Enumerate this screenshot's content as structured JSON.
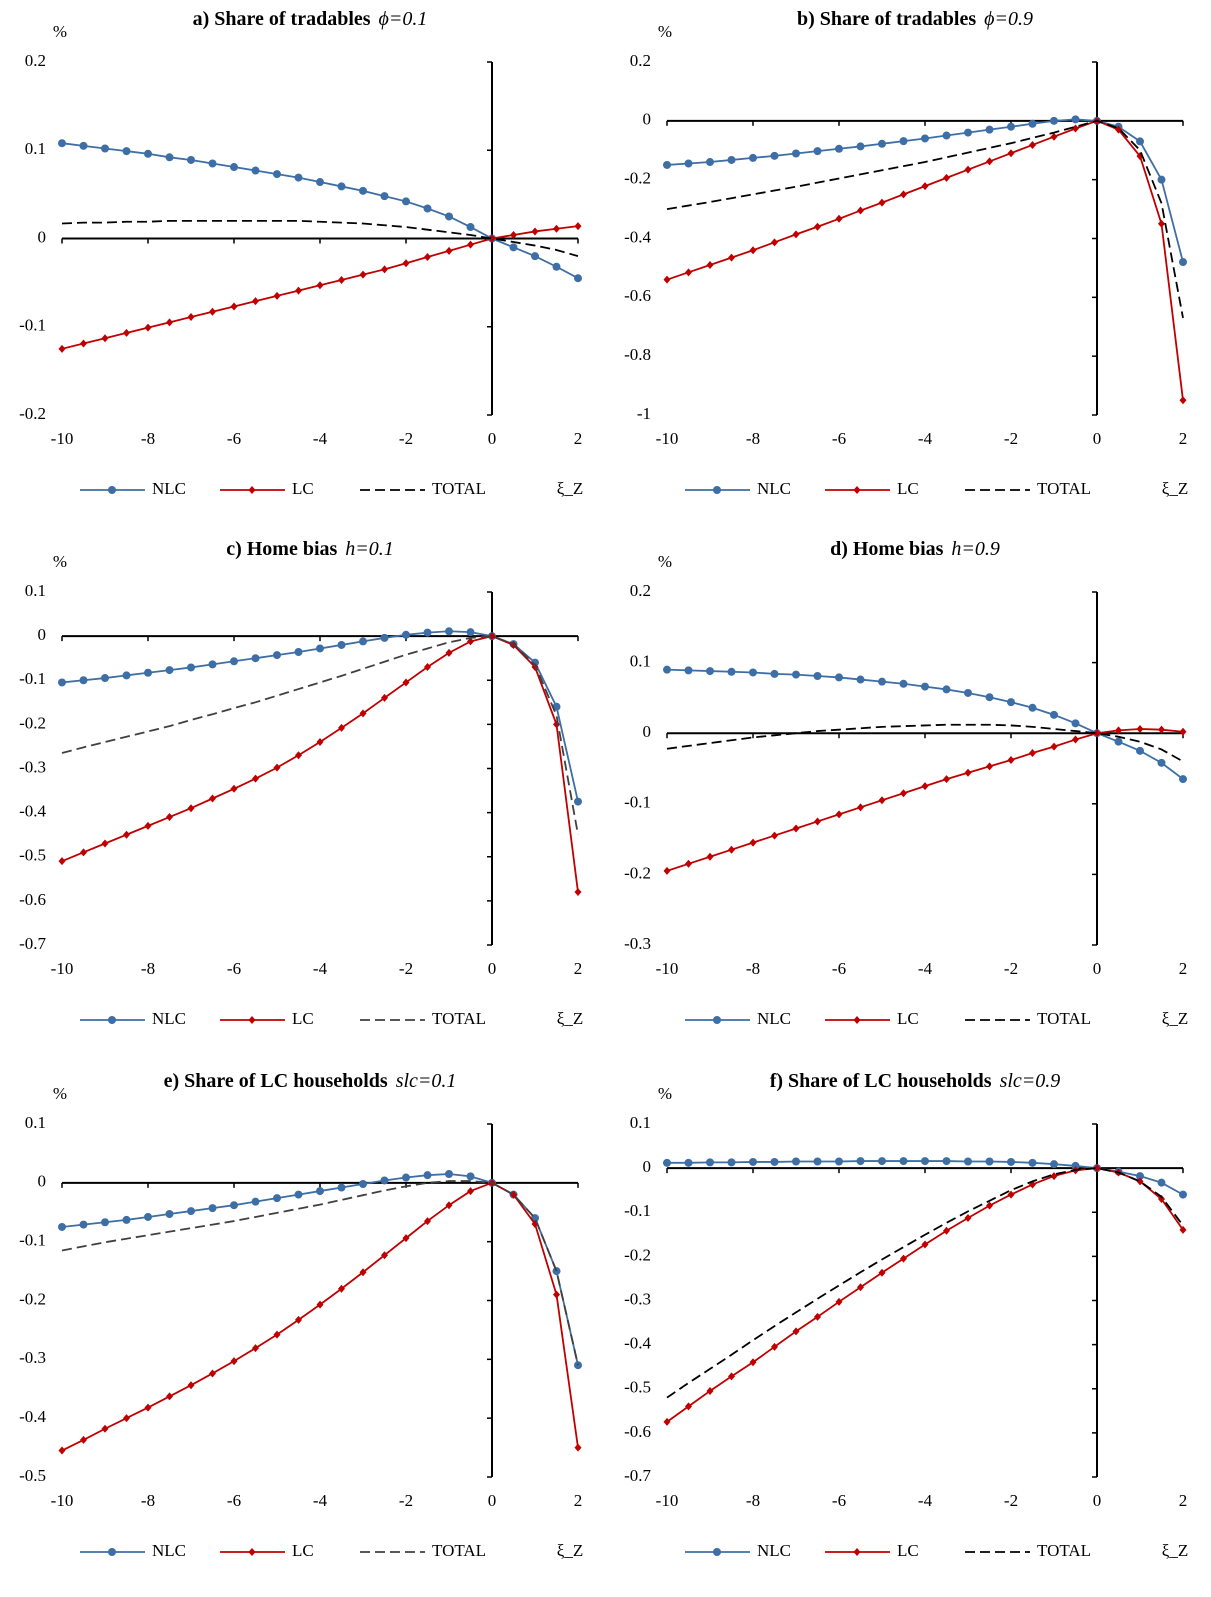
{
  "chart_data": [
    {
      "type": "line",
      "title": "a) Share of tradables",
      "subtitle": "ϕ=0.1",
      "y_label": "%",
      "x_label": "ξ_Z",
      "legend": "bottom",
      "xlim": [
        -10,
        2
      ],
      "xticks": [
        -10,
        -8,
        -6,
        -4,
        -2,
        0,
        2
      ],
      "ylim": [
        -0.2,
        0.2
      ],
      "yticks": [
        -0.2,
        -0.1,
        0,
        0.1,
        0.2
      ],
      "x": [
        -10,
        -9.5,
        -9,
        -8.5,
        -8,
        -7.5,
        -7,
        -6.5,
        -6,
        -5.5,
        -5,
        -4.5,
        -4,
        -3.5,
        -3,
        -2.5,
        -2,
        -1.5,
        -1,
        -0.5,
        0,
        0.5,
        1,
        1.5,
        2
      ],
      "series": [
        {
          "name": "NLC",
          "color": "#3d6ea5",
          "marker": "circle",
          "dashed": false,
          "values": [
            0.108,
            0.105,
            0.102,
            0.099,
            0.096,
            0.092,
            0.089,
            0.085,
            0.081,
            0.077,
            0.073,
            0.069,
            0.064,
            0.059,
            0.054,
            0.048,
            0.042,
            0.034,
            0.025,
            0.013,
            0,
            -0.01,
            -0.02,
            -0.032,
            -0.045
          ]
        },
        {
          "name": "LC",
          "color": "#c00000",
          "marker": "diamond",
          "dashed": false,
          "values": [
            -0.125,
            -0.119,
            -0.113,
            -0.107,
            -0.101,
            -0.095,
            -0.089,
            -0.083,
            -0.077,
            -0.071,
            -0.065,
            -0.059,
            -0.053,
            -0.047,
            -0.041,
            -0.035,
            -0.028,
            -0.021,
            -0.014,
            -0.007,
            0,
            0.004,
            0.008,
            0.011,
            0.014
          ]
        },
        {
          "name": "TOTAL",
          "color": "#000000",
          "marker": "none",
          "dashed": true,
          "values": [
            0.017,
            0.018,
            0.018,
            0.019,
            0.019,
            0.02,
            0.02,
            0.02,
            0.02,
            0.02,
            0.02,
            0.02,
            0.019,
            0.018,
            0.017,
            0.015,
            0.013,
            0.01,
            0.007,
            0.004,
            0,
            -0.004,
            -0.008,
            -0.013,
            -0.02
          ]
        }
      ]
    },
    {
      "type": "line",
      "title": "b) Share of tradables",
      "subtitle": "ϕ=0.9",
      "y_label": "%",
      "x_label": "ξ_Z",
      "legend": "bottom",
      "xlim": [
        -10,
        2
      ],
      "xticks": [
        -10,
        -8,
        -6,
        -4,
        -2,
        0,
        2
      ],
      "ylim": [
        -1,
        0.2
      ],
      "yticks": [
        -1,
        -0.8,
        -0.6,
        -0.4,
        -0.2,
        0,
        0.2
      ],
      "x": [
        -10,
        -9.5,
        -9,
        -8.5,
        -8,
        -7.5,
        -7,
        -6.5,
        -6,
        -5.5,
        -5,
        -4.5,
        -4,
        -3.5,
        -3,
        -2.5,
        -2,
        -1.5,
        -1,
        -0.5,
        0,
        0.5,
        1,
        1.5,
        2
      ],
      "series": [
        {
          "name": "NLC",
          "color": "#3d6ea5",
          "marker": "circle",
          "dashed": false,
          "values": [
            -0.15,
            -0.145,
            -0.14,
            -0.133,
            -0.126,
            -0.119,
            -0.111,
            -0.103,
            -0.095,
            -0.087,
            -0.078,
            -0.069,
            -0.06,
            -0.05,
            -0.04,
            -0.03,
            -0.02,
            -0.01,
            0,
            0.005,
            0,
            -0.02,
            -0.07,
            -0.2,
            -0.48
          ]
        },
        {
          "name": "LC",
          "color": "#c00000",
          "marker": "diamond",
          "dashed": false,
          "values": [
            -0.54,
            -0.515,
            -0.49,
            -0.465,
            -0.44,
            -0.413,
            -0.386,
            -0.36,
            -0.333,
            -0.305,
            -0.278,
            -0.25,
            -0.222,
            -0.194,
            -0.166,
            -0.138,
            -0.11,
            -0.082,
            -0.054,
            -0.026,
            0,
            -0.03,
            -0.12,
            -0.35,
            -0.95
          ]
        },
        {
          "name": "TOTAL",
          "color": "#000000",
          "marker": "none",
          "dashed": true,
          "values": [
            -0.3,
            -0.288,
            -0.276,
            -0.263,
            -0.25,
            -0.237,
            -0.224,
            -0.21,
            -0.196,
            -0.182,
            -0.168,
            -0.154,
            -0.14,
            -0.124,
            -0.108,
            -0.092,
            -0.076,
            -0.058,
            -0.04,
            -0.02,
            0,
            -0.025,
            -0.1,
            -0.28,
            -0.67
          ]
        }
      ]
    },
    {
      "type": "line",
      "title": "c) Home bias",
      "subtitle": "h=0.1",
      "y_label": "%",
      "x_label": "ξ_Z",
      "legend": "bottom",
      "xlim": [
        -10,
        2
      ],
      "xticks": [
        -10,
        -8,
        -6,
        -4,
        -2,
        0,
        2
      ],
      "ylim": [
        -0.7,
        0.1
      ],
      "yticks": [
        -0.7,
        -0.6,
        -0.5,
        -0.4,
        -0.3,
        -0.2,
        -0.1,
        0,
        0.1
      ],
      "x": [
        -10,
        -9.5,
        -9,
        -8.5,
        -8,
        -7.5,
        -7,
        -6.5,
        -6,
        -5.5,
        -5,
        -4.5,
        -4,
        -3.5,
        -3,
        -2.5,
        -2,
        -1.5,
        -1,
        -0.5,
        0,
        0.5,
        1,
        1.5,
        2
      ],
      "series": [
        {
          "name": "NLC",
          "color": "#3d6ea5",
          "marker": "circle",
          "dashed": false,
          "values": [
            -0.105,
            -0.1,
            -0.095,
            -0.089,
            -0.083,
            -0.077,
            -0.071,
            -0.064,
            -0.057,
            -0.05,
            -0.043,
            -0.036,
            -0.028,
            -0.02,
            -0.012,
            -0.004,
            0.003,
            0.008,
            0.011,
            0.009,
            0,
            -0.018,
            -0.06,
            -0.16,
            -0.375
          ]
        },
        {
          "name": "LC",
          "color": "#c00000",
          "marker": "diamond",
          "dashed": false,
          "values": [
            -0.51,
            -0.49,
            -0.47,
            -0.45,
            -0.43,
            -0.41,
            -0.39,
            -0.368,
            -0.346,
            -0.323,
            -0.298,
            -0.27,
            -0.24,
            -0.208,
            -0.175,
            -0.14,
            -0.105,
            -0.07,
            -0.038,
            -0.012,
            0,
            -0.02,
            -0.07,
            -0.2,
            -0.58
          ]
        },
        {
          "name": "TOTAL",
          "color": "#404040",
          "marker": "none",
          "dashed": true,
          "values": [
            -0.265,
            -0.252,
            -0.24,
            -0.228,
            -0.216,
            -0.204,
            -0.19,
            -0.177,
            -0.163,
            -0.15,
            -0.135,
            -0.12,
            -0.105,
            -0.09,
            -0.074,
            -0.058,
            -0.042,
            -0.028,
            -0.014,
            -0.004,
            0,
            -0.018,
            -0.065,
            -0.18,
            -0.45
          ]
        }
      ]
    },
    {
      "type": "line",
      "title": "d) Home bias",
      "subtitle": "h=0.9",
      "y_label": "%",
      "x_label": "ξ_Z",
      "legend": "bottom",
      "xlim": [
        -10,
        2
      ],
      "xticks": [
        -10,
        -8,
        -6,
        -4,
        -2,
        0,
        2
      ],
      "ylim": [
        -0.3,
        0.2
      ],
      "yticks": [
        -0.3,
        -0.2,
        -0.1,
        0,
        0.1,
        0.2
      ],
      "x": [
        -10,
        -9.5,
        -9,
        -8.5,
        -8,
        -7.5,
        -7,
        -6.5,
        -6,
        -5.5,
        -5,
        -4.5,
        -4,
        -3.5,
        -3,
        -2.5,
        -2,
        -1.5,
        -1,
        -0.5,
        0,
        0.5,
        1,
        1.5,
        2
      ],
      "series": [
        {
          "name": "NLC",
          "color": "#3d6ea5",
          "marker": "circle",
          "dashed": false,
          "values": [
            0.09,
            0.089,
            0.088,
            0.087,
            0.086,
            0.084,
            0.083,
            0.081,
            0.079,
            0.076,
            0.073,
            0.07,
            0.066,
            0.062,
            0.057,
            0.051,
            0.044,
            0.036,
            0.026,
            0.014,
            0,
            -0.012,
            -0.025,
            -0.042,
            -0.065
          ]
        },
        {
          "name": "LC",
          "color": "#c00000",
          "marker": "diamond",
          "dashed": false,
          "values": [
            -0.195,
            -0.185,
            -0.175,
            -0.165,
            -0.155,
            -0.145,
            -0.135,
            -0.125,
            -0.115,
            -0.105,
            -0.095,
            -0.085,
            -0.075,
            -0.065,
            -0.056,
            -0.047,
            -0.038,
            -0.028,
            -0.019,
            -0.009,
            0,
            0.004,
            0.006,
            0.005,
            0.002
          ]
        },
        {
          "name": "TOTAL",
          "color": "#000000",
          "marker": "none",
          "dashed": true,
          "values": [
            -0.022,
            -0.018,
            -0.014,
            -0.01,
            -0.006,
            -0.003,
            0,
            0.003,
            0.005,
            0.007,
            0.009,
            0.01,
            0.011,
            0.012,
            0.012,
            0.012,
            0.011,
            0.009,
            0.006,
            0.003,
            0,
            -0.005,
            -0.012,
            -0.023,
            -0.04
          ]
        }
      ]
    },
    {
      "type": "line",
      "title": "e) Share of LC households",
      "subtitle": "slc=0.1",
      "y_label": "%",
      "x_label": "ξ_Z",
      "legend": "bottom",
      "xlim": [
        -10,
        2
      ],
      "xticks": [
        -10,
        -8,
        -6,
        -4,
        -2,
        0,
        2
      ],
      "ylim": [
        -0.5,
        0.1
      ],
      "yticks": [
        -0.5,
        -0.4,
        -0.3,
        -0.2,
        -0.1,
        0,
        0.1
      ],
      "x": [
        -10,
        -9.5,
        -9,
        -8.5,
        -8,
        -7.5,
        -7,
        -6.5,
        -6,
        -5.5,
        -5,
        -4.5,
        -4,
        -3.5,
        -3,
        -2.5,
        -2,
        -1.5,
        -1,
        -0.5,
        0,
        0.5,
        1,
        1.5,
        2
      ],
      "series": [
        {
          "name": "NLC",
          "color": "#3d6ea5",
          "marker": "circle",
          "dashed": false,
          "values": [
            -0.075,
            -0.071,
            -0.067,
            -0.063,
            -0.058,
            -0.053,
            -0.048,
            -0.043,
            -0.038,
            -0.032,
            -0.026,
            -0.02,
            -0.014,
            -0.008,
            -0.002,
            0.004,
            0.009,
            0.013,
            0.015,
            0.011,
            0,
            -0.02,
            -0.06,
            -0.15,
            -0.31
          ]
        },
        {
          "name": "LC",
          "color": "#c00000",
          "marker": "diamond",
          "dashed": false,
          "values": [
            -0.455,
            -0.437,
            -0.418,
            -0.4,
            -0.382,
            -0.363,
            -0.344,
            -0.324,
            -0.303,
            -0.281,
            -0.258,
            -0.233,
            -0.207,
            -0.18,
            -0.152,
            -0.123,
            -0.094,
            -0.065,
            -0.038,
            -0.014,
            0,
            -0.02,
            -0.07,
            -0.19,
            -0.45
          ]
        },
        {
          "name": "TOTAL",
          "color": "#404040",
          "marker": "none",
          "dashed": true,
          "values": [
            -0.115,
            -0.108,
            -0.101,
            -0.095,
            -0.089,
            -0.083,
            -0.077,
            -0.071,
            -0.065,
            -0.058,
            -0.051,
            -0.044,
            -0.037,
            -0.029,
            -0.021,
            -0.013,
            -0.006,
            0,
            0.003,
            0.003,
            0,
            -0.02,
            -0.06,
            -0.15,
            -0.31
          ]
        }
      ]
    },
    {
      "type": "line",
      "title": "f) Share of LC households",
      "subtitle": "slc=0.9",
      "y_label": "%",
      "x_label": "ξ_Z",
      "legend": "bottom",
      "xlim": [
        -10,
        2
      ],
      "xticks": [
        -10,
        -8,
        -6,
        -4,
        -2,
        0,
        2
      ],
      "ylim": [
        -0.7,
        0.1
      ],
      "yticks": [
        -0.7,
        -0.6,
        -0.5,
        -0.4,
        -0.3,
        -0.2,
        -0.1,
        0,
        0.1
      ],
      "x": [
        -10,
        -9.5,
        -9,
        -8.5,
        -8,
        -7.5,
        -7,
        -6.5,
        -6,
        -5.5,
        -5,
        -4.5,
        -4,
        -3.5,
        -3,
        -2.5,
        -2,
        -1.5,
        -1,
        -0.5,
        0,
        0.5,
        1,
        1.5,
        2
      ],
      "series": [
        {
          "name": "NLC",
          "color": "#3d6ea5",
          "marker": "circle",
          "dashed": false,
          "values": [
            0.012,
            0.012,
            0.013,
            0.013,
            0.014,
            0.014,
            0.015,
            0.015,
            0.015,
            0.016,
            0.016,
            0.016,
            0.016,
            0.016,
            0.015,
            0.015,
            0.014,
            0.012,
            0.009,
            0.005,
            0,
            -0.008,
            -0.018,
            -0.033,
            -0.06
          ]
        },
        {
          "name": "LC",
          "color": "#c00000",
          "marker": "diamond",
          "dashed": false,
          "values": [
            -0.575,
            -0.54,
            -0.505,
            -0.472,
            -0.44,
            -0.405,
            -0.37,
            -0.337,
            -0.303,
            -0.27,
            -0.237,
            -0.205,
            -0.173,
            -0.142,
            -0.113,
            -0.085,
            -0.06,
            -0.037,
            -0.018,
            -0.005,
            0,
            -0.01,
            -0.03,
            -0.07,
            -0.14
          ]
        },
        {
          "name": "TOTAL",
          "color": "#000000",
          "marker": "none",
          "dashed": true,
          "values": [
            -0.52,
            -0.487,
            -0.455,
            -0.423,
            -0.39,
            -0.358,
            -0.327,
            -0.296,
            -0.266,
            -0.236,
            -0.207,
            -0.179,
            -0.151,
            -0.124,
            -0.098,
            -0.074,
            -0.05,
            -0.03,
            -0.014,
            -0.004,
            0,
            -0.01,
            -0.03,
            -0.065,
            -0.13
          ]
        }
      ]
    }
  ]
}
